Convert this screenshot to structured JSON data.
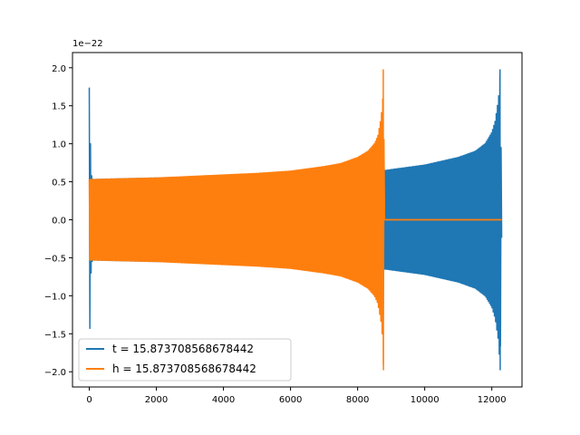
{
  "chart_data": {
    "type": "line",
    "title": "",
    "xlabel": "",
    "ylabel": "",
    "y_scale_label": "1e−22",
    "xlim": [
      -500,
      12900
    ],
    "ylim": [
      -2.2,
      2.2
    ],
    "x_ticks": [
      0,
      2000,
      4000,
      6000,
      8000,
      10000,
      12000
    ],
    "x_tick_labels": [
      "0",
      "2000",
      "4000",
      "6000",
      "8000",
      "10000",
      "12000"
    ],
    "y_ticks": [
      -2.0,
      -1.5,
      -1.0,
      -0.5,
      0.0,
      0.5,
      1.0,
      1.5,
      2.0
    ],
    "y_tick_labels": [
      "−2.0",
      "−1.5",
      "−1.0",
      "−0.5",
      "0.0",
      "0.5",
      "1.0",
      "1.5",
      "2.0"
    ],
    "grid": false,
    "legend_position": "lower-left",
    "series": [
      {
        "name": "t = 15.873708568678442",
        "color": "#1f77b4",
        "x": [
          0,
          30,
          60,
          100,
          1000,
          2000,
          3000,
          4000,
          5000,
          6000,
          7000,
          8000,
          8500,
          8750,
          8800,
          8850,
          9000,
          10000,
          11000,
          11500,
          11800,
          12000,
          12100,
          12200,
          12250,
          12300
        ],
        "amplitude": [
          1.74,
          1.1,
          0.6,
          0.53,
          0.54,
          0.55,
          0.56,
          0.57,
          0.58,
          0.6,
          0.62,
          0.63,
          0.64,
          0.65,
          0.65,
          0.65,
          0.66,
          0.72,
          0.82,
          0.9,
          1.0,
          1.15,
          1.3,
          1.6,
          1.98,
          0.0
        ],
        "start_amplitude_neg": -1.43
      },
      {
        "name": "h = 15.873708568678442",
        "color": "#ff7f0e",
        "x": [
          0,
          100,
          1000,
          2000,
          3000,
          4000,
          5000,
          6000,
          7000,
          7500,
          8000,
          8300,
          8500,
          8600,
          8700,
          8750,
          8770,
          8800,
          12300
        ],
        "amplitude": [
          0.53,
          0.53,
          0.54,
          0.55,
          0.57,
          0.59,
          0.61,
          0.64,
          0.7,
          0.74,
          0.82,
          0.9,
          1.0,
          1.1,
          1.35,
          1.6,
          1.98,
          0.0,
          0.0
        ]
      }
    ]
  }
}
